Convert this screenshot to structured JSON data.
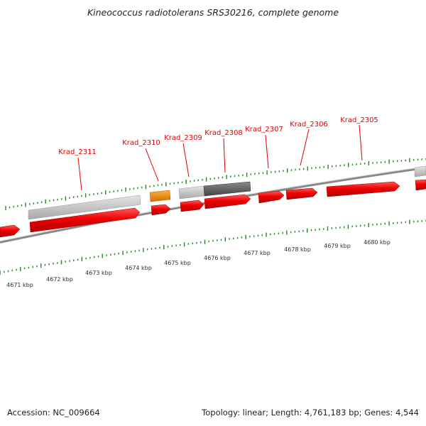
{
  "title": "Kineococcus radiotolerans SRS30216, complete genome",
  "footer": {
    "accession": "Accession: NC_009664",
    "summary": "Topology: linear; Length: 4,761,183 bp; Genes: 4,544"
  },
  "colors": {
    "gene_red": "#ee0000",
    "gene_orange": "#f08c00",
    "gene_light_gray": "#c8c8c8",
    "gene_dark_gray": "#606060",
    "tick_green": "#228b22",
    "backbone_gray": "#777777",
    "label_red": "#e00000"
  },
  "gene_labels": [
    "Krad_2311",
    "Krad_2310",
    "Krad_2309",
    "Krad_2308",
    "Krad_2307",
    "Krad_2306",
    "Krad_2305"
  ],
  "kbp_labels": [
    "4671 kbp",
    "4672 kbp",
    "4673 kbp",
    "4674 kbp",
    "4675 kbp",
    "4676 kbp",
    "4677 kbp",
    "4678 kbp",
    "4679 kbp",
    "4680 kbp"
  ]
}
